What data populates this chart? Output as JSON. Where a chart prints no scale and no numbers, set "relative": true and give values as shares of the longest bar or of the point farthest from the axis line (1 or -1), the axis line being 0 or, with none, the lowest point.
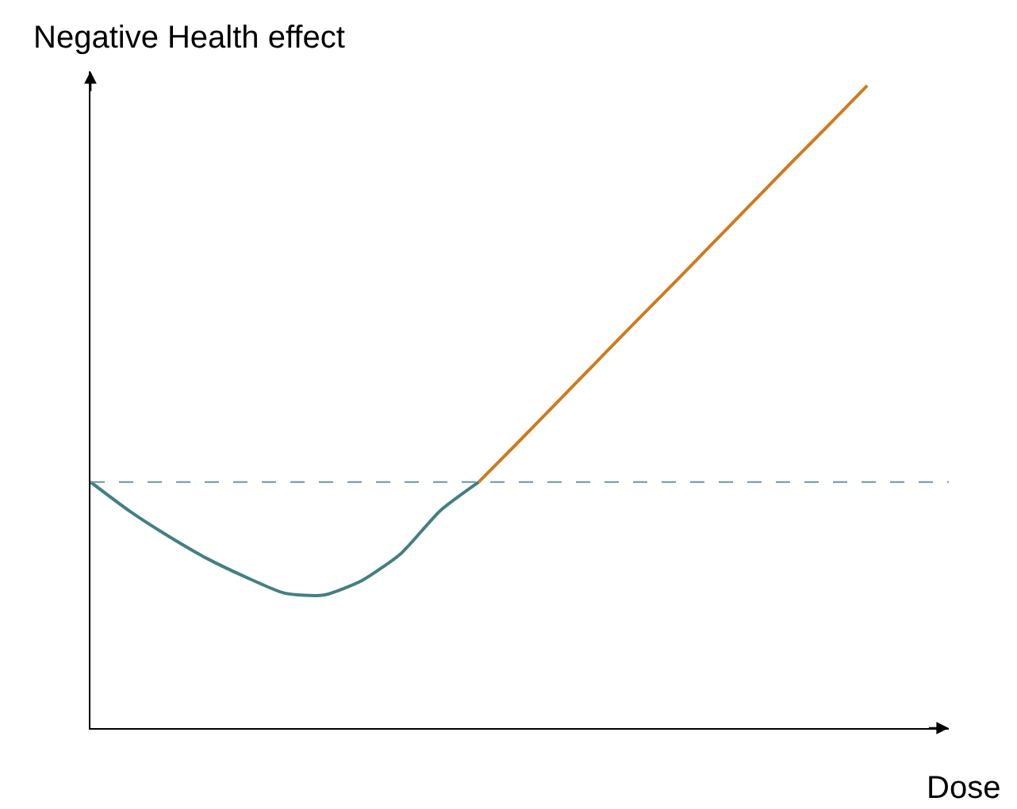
{
  "chart_data": {
    "type": "line",
    "relative": true,
    "xlabel": "Dose",
    "ylabel": "Negative Health effect",
    "categories": [
      null,
      null,
      null,
      null,
      null,
      null,
      null,
      null,
      null,
      null,
      null,
      null,
      null,
      null,
      null,
      null,
      null,
      null,
      null,
      null,
      null
    ],
    "series": [
      {
        "color": "#437f83",
        "values": [
          0.383,
          0.338,
          0.299,
          0.264,
          0.235,
          0.21,
          0.207,
          0.23,
          0.272,
          0.338,
          0.383,
          null,
          null,
          null,
          null,
          null,
          null,
          null,
          null,
          null,
          null
        ]
      },
      {
        "color": "#d07a1e",
        "values": [
          null,
          null,
          null,
          null,
          null,
          null,
          null,
          null,
          null,
          null,
          0.383,
          0.444,
          0.506,
          0.568,
          0.63,
          0.691,
          0.753,
          0.815,
          0.877,
          0.938,
          1
        ]
      }
    ],
    "ref_lines": [
      {
        "axis": "y",
        "value": 0.383,
        "color": "#6f93a3",
        "line_style": "dashed"
      }
    ],
    "tick_labels": false,
    "marker": "none",
    "line_style": "solid"
  }
}
